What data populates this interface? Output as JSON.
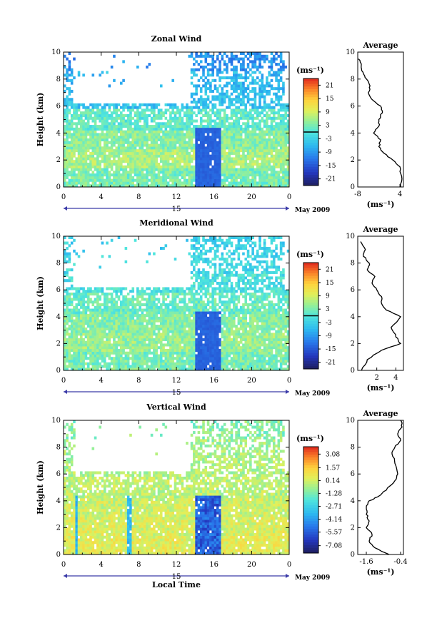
{
  "chart_data": [
    {
      "type": "heatmap",
      "title": "Zonal Wind",
      "ylabel": "Height (km)",
      "xlabel": "",
      "xlim": [
        0,
        24
      ],
      "ylim": [
        0,
        10
      ],
      "x_ticks": [
        "0",
        "4",
        "8",
        "12",
        "16",
        "20",
        "0"
      ],
      "y_ticks": [
        "0",
        "2",
        "4",
        "6",
        "8",
        "10"
      ],
      "day_label": "15",
      "month_label": "May 2009",
      "colorbar": {
        "unit": "(ms⁻¹)",
        "range": [
          -24,
          24
        ],
        "tick_values": [
          21,
          15,
          9,
          3,
          -3,
          -9,
          -15,
          -21
        ],
        "tick_labels": [
          "21",
          "15",
          "9",
          "3",
          "-3",
          "-9",
          "-15",
          "-21"
        ],
        "zero_line": 0
      },
      "field": {
        "seed": 11,
        "base": [
          3,
          6,
          4,
          1,
          -5,
          -6,
          -10
        ],
        "night_dip": -14
      },
      "average": {
        "title": "Average",
        "xlim": [
          -8,
          5
        ],
        "x_ticks": [
          "-8",
          "4"
        ],
        "x_tick_values": [
          -8,
          4
        ],
        "xlabel": "(ms⁻¹)",
        "y_ticks": [
          "0",
          "2",
          "4",
          "6",
          "8",
          "10"
        ],
        "profile": [
          [
            4.2,
            0.0
          ],
          [
            4.5,
            0.8
          ],
          [
            4.0,
            1.5
          ],
          [
            2.0,
            2.0
          ],
          [
            -0.5,
            2.5
          ],
          [
            -2.0,
            3.0
          ],
          [
            -1.5,
            3.5
          ],
          [
            -3.5,
            4.0
          ],
          [
            -2.0,
            4.5
          ],
          [
            -2.0,
            5.0
          ],
          [
            -1.0,
            5.5
          ],
          [
            -1.5,
            6.0
          ],
          [
            -4.0,
            6.5
          ],
          [
            -5.0,
            7.0
          ],
          [
            -4.5,
            7.5
          ],
          [
            -5.5,
            8.0
          ],
          [
            -6.5,
            8.5
          ],
          [
            -7.0,
            9.0
          ],
          [
            -7.8,
            9.5
          ]
        ]
      }
    },
    {
      "type": "heatmap",
      "title": "Meridional Wind",
      "ylabel": "Height (km)",
      "xlabel": "",
      "xlim": [
        0,
        24
      ],
      "ylim": [
        0,
        10
      ],
      "x_ticks": [
        "0",
        "4",
        "8",
        "12",
        "16",
        "20",
        "0"
      ],
      "y_ticks": [
        "0",
        "2",
        "4",
        "6",
        "8",
        "10"
      ],
      "day_label": "15",
      "month_label": "May 2009",
      "colorbar": {
        "unit": "(ms⁻¹)",
        "range": [
          -24,
          24
        ],
        "tick_values": [
          21,
          15,
          9,
          3,
          -3,
          -9,
          -15,
          -21
        ],
        "tick_labels": [
          "21",
          "15",
          "9",
          "3",
          "-3",
          "-9",
          "-15",
          "-21"
        ],
        "zero_line": 0
      },
      "field": {
        "seed": 23,
        "base": [
          3,
          5,
          4,
          2,
          -1,
          -2,
          -3
        ],
        "night_dip": -14
      },
      "average": {
        "title": "Average",
        "xlim": [
          0,
          4.8
        ],
        "x_ticks": [
          "2",
          "4"
        ],
        "x_tick_values": [
          2,
          4
        ],
        "xlabel": "(ms⁻¹)",
        "y_ticks": [
          "0",
          "2",
          "4",
          "6",
          "8",
          "10"
        ],
        "profile": [
          [
            0.4,
            0.0
          ],
          [
            1.0,
            0.8
          ],
          [
            2.5,
            1.5
          ],
          [
            4.5,
            2.0
          ],
          [
            4.0,
            2.5
          ],
          [
            3.5,
            3.2
          ],
          [
            4.5,
            4.0
          ],
          [
            3.0,
            4.5
          ],
          [
            2.5,
            5.0
          ],
          [
            2.5,
            5.5
          ],
          [
            2.0,
            6.0
          ],
          [
            1.5,
            6.5
          ],
          [
            1.8,
            7.0
          ],
          [
            1.0,
            7.5
          ],
          [
            1.2,
            8.0
          ],
          [
            0.6,
            8.5
          ],
          [
            0.8,
            9.0
          ],
          [
            0.3,
            9.6
          ]
        ]
      }
    },
    {
      "type": "heatmap",
      "title": "Vertical Wind",
      "ylabel": "Height (km)",
      "xlabel": "Local Time",
      "xlim": [
        0,
        24
      ],
      "ylim": [
        0,
        10
      ],
      "x_ticks": [
        "0",
        "4",
        "8",
        "12",
        "16",
        "20",
        "0"
      ],
      "y_ticks": [
        "0",
        "2",
        "4",
        "6",
        "8",
        "10"
      ],
      "day_label": "15",
      "month_label": "May 2009",
      "colorbar": {
        "unit": "(ms⁻¹)",
        "range": [
          -7.9,
          3.9
        ],
        "tick_values": [
          3.08,
          1.57,
          0.14,
          -1.28,
          -2.71,
          -4.14,
          -5.57,
          -7.08
        ],
        "tick_labels": [
          "3.08",
          "1.57",
          "0.14",
          "-1.28",
          "-2.71",
          "-4.14",
          "-5.57",
          "-7.08"
        ]
      },
      "field": {
        "seed": 37,
        "base": [
          0.5,
          0.3,
          0.1,
          -0.2,
          -0.4,
          -0.6,
          -1.0
        ],
        "night_dip": -5.5
      },
      "average": {
        "title": "Average",
        "xlim": [
          -1.9,
          -0.3
        ],
        "x_ticks": [
          "-1.6",
          "-0.4"
        ],
        "x_tick_values": [
          -1.6,
          -0.4
        ],
        "xlabel": "(ms⁻¹)",
        "y_ticks": [
          "0",
          "2",
          "4",
          "6",
          "8",
          "10"
        ],
        "profile": [
          [
            -0.8,
            0.0
          ],
          [
            -1.3,
            0.5
          ],
          [
            -1.5,
            1.0
          ],
          [
            -1.4,
            1.5
          ],
          [
            -1.6,
            2.0
          ],
          [
            -1.5,
            2.5
          ],
          [
            -1.6,
            3.0
          ],
          [
            -1.6,
            3.5
          ],
          [
            -1.5,
            4.0
          ],
          [
            -1.2,
            4.3
          ],
          [
            -0.9,
            4.8
          ],
          [
            -0.6,
            5.5
          ],
          [
            -0.5,
            6.0
          ],
          [
            -0.6,
            6.8
          ],
          [
            -0.7,
            7.5
          ],
          [
            -0.6,
            8.0
          ],
          [
            -0.4,
            8.5
          ],
          [
            -0.5,
            9.0
          ],
          [
            -0.35,
            9.5
          ],
          [
            -0.4,
            10.0
          ]
        ]
      }
    }
  ]
}
